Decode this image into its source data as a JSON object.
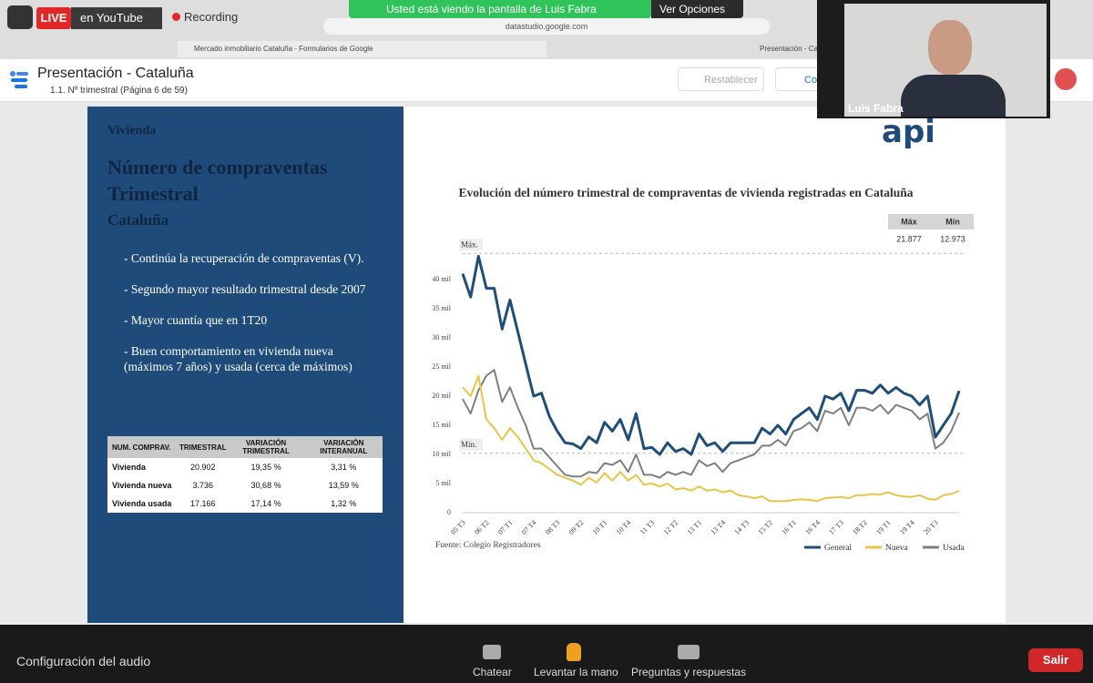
{
  "zoom": {
    "live": "LIVE",
    "youtube": "en YouTube",
    "recording": "Recording",
    "banner": "Usted está viendo la pantalla de Luis Fabra",
    "view_options": "Ver Opciones",
    "participant": "Luis Fabra",
    "audio": "Configuración del audio",
    "chat": "Chatear",
    "raise_hand": "Levantar la mano",
    "qa": "Preguntas y respuestas",
    "leave": "Salir"
  },
  "browser": {
    "url": "datastudio.google.com",
    "tab1": "Mercado inmobiliario Cataluña - Formularios de Google",
    "tab2": "Presentación - Cata"
  },
  "app": {
    "title": "Presentación - Cataluña",
    "page": "1.1. Nº trimestral (Página 6 de 59)",
    "reset": "Restablecer",
    "share": "Co"
  },
  "slide": {
    "section": "Vivienda",
    "heading": "Número de compraventas Trimestral",
    "region": "Cataluña",
    "bullets": [
      "- Continúa la recuperación de compraventas (V).",
      "- Segundo mayor resultado trimestral desde 2007",
      "- Mayor cuantía que en 1T20",
      "- Buen comportamiento en vivienda nueva (máximos 7 años) y usada (cerca de máximos)"
    ],
    "logo": "api",
    "table": {
      "header": [
        "NUM. COMPRAV.",
        "TRIMESTRAL",
        "VARIACIÓN TRIMESTRAL",
        "VARIACIÓN INTERANUAL"
      ],
      "rows": [
        [
          "Vivienda",
          "20.902",
          "19,35 %",
          "3,31 %"
        ],
        [
          "Vivienda nueva",
          "3.736",
          "30,68 %",
          "13,59 %"
        ],
        [
          "Vivienda usada",
          "17.166",
          "17,14 %",
          "1,32 %"
        ]
      ]
    }
  },
  "chart_data": {
    "type": "line",
    "title": "Evolución del número trimestral de compraventas de vivienda registradas en Cataluña",
    "source": "Fuente: Colegio Registradores",
    "summary": {
      "header": [
        "Máx",
        "Mín"
      ],
      "values": [
        "21.877",
        "12.973"
      ]
    },
    "reference_lines": [
      {
        "label": "Máx.",
        "value": 44.5
      },
      {
        "label": "Mín.",
        "value": 10.2
      }
    ],
    "categories": [
      "05 T3",
      null,
      null,
      "06 T2",
      null,
      null,
      "07 T1",
      null,
      null,
      "07 T4",
      null,
      null,
      "08 T3",
      null,
      null,
      "09 T2",
      null,
      null,
      "10 T1",
      null,
      null,
      "10 T4",
      null,
      null,
      "11 T3",
      null,
      null,
      "12 T2",
      null,
      null,
      "13 T1",
      null,
      null,
      "13 T4",
      null,
      null,
      "14 T3",
      null,
      null,
      "15 T2",
      null,
      null,
      "16 T1",
      null,
      null,
      "16 T4",
      null,
      null,
      "17 T3",
      null,
      null,
      "18 T2",
      null,
      null,
      "19 T1",
      null,
      null,
      "19 T4",
      null,
      null,
      "20 T3",
      null,
      null,
      null
    ],
    "series": [
      {
        "name": "General",
        "color": "#1f4e79",
        "width": 3,
        "values": [
          41,
          37,
          44,
          38.5,
          38.5,
          31.5,
          36.5,
          31,
          25.5,
          20,
          20.5,
          16.5,
          14,
          12,
          11.8,
          11,
          13,
          12,
          15.5,
          14,
          16,
          12.5,
          17,
          11,
          11.2,
          10,
          12,
          10.5,
          11,
          10,
          13.5,
          11.5,
          12,
          10.5,
          12,
          12,
          12,
          12,
          14.5,
          13.5,
          15,
          13.5,
          16,
          17,
          18,
          16,
          20,
          19.5,
          20.5,
          17.5,
          21,
          21,
          20.5,
          21.9,
          20.5,
          21.5,
          20.5,
          20,
          18.5,
          20,
          12.97,
          15,
          17,
          20.9
        ]
      },
      {
        "name": "Nueva",
        "color": "#e8c547",
        "width": 2,
        "values": [
          21.5,
          20,
          23.5,
          16,
          14.5,
          12.5,
          14.5,
          13,
          11,
          9,
          8.5,
          7.5,
          6.5,
          6,
          5.5,
          4.8,
          6,
          5.2,
          6.8,
          5.5,
          7,
          5.5,
          6.5,
          4.8,
          5,
          4.5,
          5,
          4,
          4.2,
          3.8,
          4.5,
          3.8,
          4,
          3.5,
          3.8,
          3,
          2.8,
          2.5,
          2.8,
          2,
          2,
          2,
          2.2,
          2.3,
          2.2,
          2,
          2.5,
          2.6,
          2.7,
          2.5,
          3,
          3,
          3.2,
          3.1,
          3.5,
          3,
          2.8,
          2.7,
          3,
          2.4,
          2.2,
          3,
          3.2,
          3.74
        ]
      },
      {
        "name": "Usada",
        "color": "#7f7f7f",
        "width": 2,
        "values": [
          19.5,
          17,
          21,
          23.5,
          24.5,
          19,
          21.5,
          18,
          15,
          11,
          11,
          9.5,
          8,
          6.5,
          6.2,
          6.2,
          7,
          6.8,
          8.5,
          8.2,
          9,
          7,
          10,
          6.5,
          6.5,
          6,
          7,
          6.5,
          7,
          6.5,
          9,
          8,
          8.5,
          7,
          8.5,
          9,
          9.5,
          10,
          11.5,
          11.5,
          12.5,
          11.5,
          14,
          14.5,
          15.5,
          14,
          17.5,
          17,
          18,
          15,
          18,
          18,
          17.5,
          18.5,
          17,
          18.5,
          18,
          17.5,
          16,
          17,
          11,
          12,
          14,
          17.17
        ]
      }
    ],
    "ylim": [
      0,
      45
    ],
    "yticks": [
      {
        "value": 0,
        "label": "0"
      },
      {
        "value": 5,
        "label": "5 mil"
      },
      {
        "value": 10,
        "label": "10 mil"
      },
      {
        "value": 15,
        "label": "15 mil"
      },
      {
        "value": 20,
        "label": "20 mil"
      },
      {
        "value": 25,
        "label": "25 mil"
      },
      {
        "value": 30,
        "label": "30 mil"
      },
      {
        "value": 35,
        "label": "35 mil"
      },
      {
        "value": 40,
        "label": "40 mil"
      }
    ],
    "grid": false,
    "legend": "bottom-right"
  }
}
